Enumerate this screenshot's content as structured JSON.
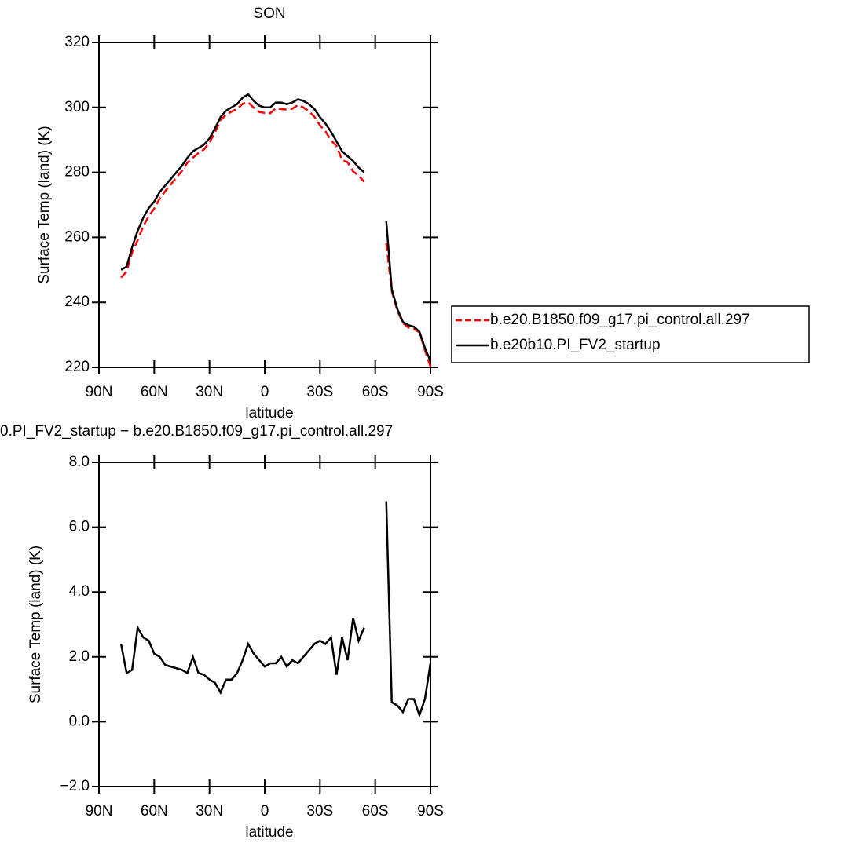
{
  "chart_data": [
    {
      "type": "line",
      "title": "SON",
      "x_label": "latitude",
      "y_label": "Surface Temp (land) (K)",
      "x": [
        78,
        75,
        72,
        69,
        66,
        63,
        60,
        57,
        54,
        51,
        48,
        45,
        42,
        39,
        36,
        33,
        30,
        27,
        24,
        21,
        18,
        15,
        12,
        9,
        6,
        3,
        0,
        -3,
        -6,
        -9,
        -12,
        -15,
        -18,
        -21,
        -24,
        -27,
        -30,
        -33,
        -36,
        -39,
        -42,
        -45,
        -48,
        -51,
        -54,
        -57,
        -60,
        -63,
        -66,
        -69,
        -72,
        -75,
        -78,
        -81,
        -84,
        -87,
        -90
      ],
      "xlim": [
        90,
        -90
      ],
      "xticks": [
        {
          "value": 90,
          "label": "90N"
        },
        {
          "value": 60,
          "label": "60N"
        },
        {
          "value": 30,
          "label": "30N"
        },
        0,
        {
          "value": -30,
          "label": "30S"
        },
        {
          "value": -60,
          "label": "60S"
        },
        {
          "value": -90,
          "label": "90S"
        }
      ],
      "ylim": [
        220,
        320
      ],
      "yticks": [
        220,
        240,
        260,
        280,
        300,
        320
      ],
      "legend": "outside-right",
      "series": [
        {
          "name": "b.e20.B1850.f09_g17.pi_control.all.297",
          "color": "#ff0000",
          "dash": true,
          "values": [
            247.6,
            249.5,
            255.4,
            259.1,
            263.4,
            266.5,
            268.9,
            272,
            274.25,
            276.3,
            278.35,
            280.4,
            283,
            284.5,
            286,
            287.05,
            289.2,
            292.3,
            296.1,
            297.7,
            298.7,
            299.5,
            301.1,
            301.6,
            299.9,
            298.6,
            298.3,
            298.2,
            299.7,
            299.5,
            299.3,
            299.6,
            300.7,
            300,
            298.8,
            297.1,
            294.5,
            292.6,
            289.9,
            288.05,
            283.9,
            283.1,
            280.3,
            279,
            277.1,
            null,
            null,
            null,
            258.2,
            243.4,
            237.5,
            233.7,
            232.3,
            231.8,
            230.8,
            225.3,
            220.2
          ]
        },
        {
          "name": "b.e20b10.PI_FV2_startup",
          "color": "#000000",
          "dash": false,
          "values": [
            250,
            251,
            257,
            262,
            266,
            269,
            271,
            274,
            276,
            278,
            280,
            282,
            284.5,
            286.5,
            287.5,
            288.5,
            290.5,
            293.5,
            297,
            299,
            300,
            301,
            303,
            304,
            302,
            300.5,
            300,
            300,
            301.5,
            301.5,
            301,
            301.5,
            302.5,
            302,
            301,
            299.5,
            297,
            295,
            292.5,
            289.5,
            286.5,
            285,
            283.5,
            281.5,
            280,
            null,
            null,
            null,
            265,
            244,
            238,
            234,
            233,
            232.5,
            231,
            226,
            222
          ]
        }
      ]
    },
    {
      "type": "line",
      "title": "0.PI_FV2_startup − b.e20.B1850.f09_g17.pi_control.all.297",
      "x_label": "latitude",
      "y_label": "Surface Temp (land) (K)",
      "x": [
        78,
        75,
        72,
        69,
        66,
        63,
        60,
        57,
        54,
        51,
        48,
        45,
        42,
        39,
        36,
        33,
        30,
        27,
        24,
        21,
        18,
        15,
        12,
        9,
        6,
        3,
        0,
        -3,
        -6,
        -9,
        -12,
        -15,
        -18,
        -21,
        -24,
        -27,
        -30,
        -33,
        -36,
        -39,
        -42,
        -45,
        -48,
        -51,
        -54,
        -57,
        -60,
        -63,
        -66,
        -69,
        -72,
        -75,
        -78,
        -81,
        -84,
        -87,
        -90
      ],
      "xlim": [
        90,
        -90
      ],
      "xticks": [
        {
          "value": 90,
          "label": "90N"
        },
        {
          "value": 60,
          "label": "60N"
        },
        {
          "value": 30,
          "label": "30N"
        },
        0,
        {
          "value": -30,
          "label": "30S"
        },
        {
          "value": -60,
          "label": "60S"
        },
        {
          "value": -90,
          "label": "90S"
        }
      ],
      "ylim": [
        -2,
        8
      ],
      "yticks": [
        {
          "value": -2,
          "label": "−2.0"
        },
        {
          "value": 0,
          "label": "0.0"
        },
        {
          "value": 2,
          "label": "2.0"
        },
        {
          "value": 4,
          "label": "4.0"
        },
        {
          "value": 6,
          "label": "6.0"
        },
        {
          "value": 8,
          "label": "8.0"
        }
      ],
      "series": [
        {
          "color": "#000000",
          "dash": false,
          "values": [
            2.4,
            1.5,
            1.6,
            2.9,
            2.6,
            2.5,
            2.1,
            2.0,
            1.75,
            1.7,
            1.65,
            1.6,
            1.5,
            2.0,
            1.5,
            1.45,
            1.3,
            1.2,
            0.9,
            1.3,
            1.3,
            1.5,
            1.9,
            2.4,
            2.1,
            1.9,
            1.7,
            1.8,
            1.8,
            2.0,
            1.7,
            1.9,
            1.8,
            2.0,
            2.2,
            2.4,
            2.5,
            2.4,
            2.6,
            1.45,
            2.6,
            1.9,
            3.2,
            2.5,
            2.9,
            null,
            null,
            null,
            6.8,
            0.6,
            0.5,
            0.3,
            0.7,
            0.7,
            0.2,
            0.7,
            1.8
          ]
        }
      ]
    }
  ]
}
